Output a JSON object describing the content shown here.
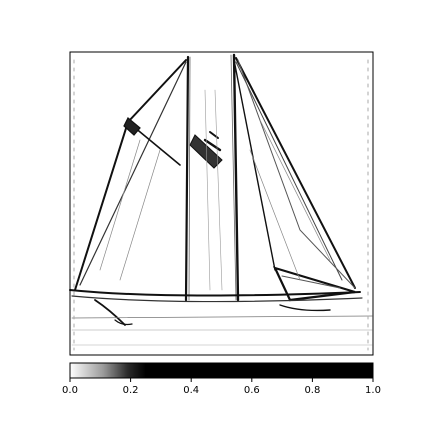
{
  "figure": {
    "image_description_hidden": false,
    "colorbar": {
      "ticks": [
        "0.0",
        "0.2",
        "0.4",
        "0.6",
        "0.8",
        "1.0"
      ],
      "tick_values": [
        0.0,
        0.2,
        0.4,
        0.6,
        0.8,
        1.0
      ],
      "range": [
        0.0,
        1.0
      ],
      "colormap": "binary-thresholded",
      "gradient_stops": [
        {
          "value": 0.0,
          "color": "#ffffff"
        },
        {
          "value": 0.11,
          "color": "#9a9a9a"
        },
        {
          "value": 0.19,
          "color": "#2b2b2b"
        },
        {
          "value": 0.25,
          "color": "#000000"
        },
        {
          "value": 1.0,
          "color": "#000000"
        }
      ]
    }
  }
}
